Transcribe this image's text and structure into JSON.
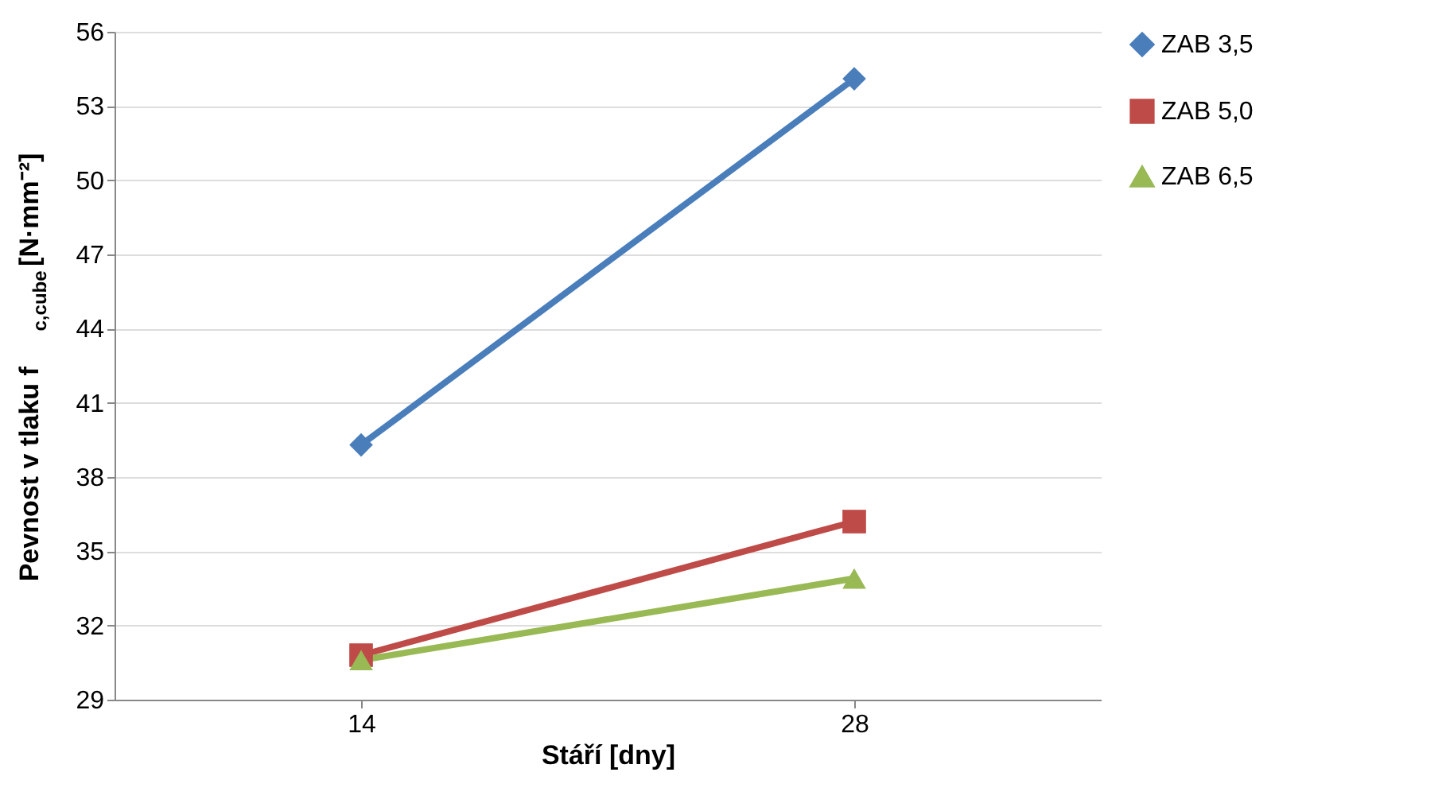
{
  "chart_data": {
    "type": "line",
    "xlabel": "Stáří [dny]",
    "ylabel": "Pevnost v tlaku f$_{c,cube}$ [N·mm⁻²]",
    "categories": [
      "14",
      "28"
    ],
    "series": [
      {
        "name": "ZAB 3,5",
        "color": "#4a7ebb",
        "marker": "diamond",
        "values": [
          39.3,
          54.1
        ]
      },
      {
        "name": "ZAB 5,0",
        "color": "#be4b48",
        "marker": "square",
        "values": [
          30.8,
          36.2
        ]
      },
      {
        "name": "ZAB 6,5",
        "color": "#98b954",
        "marker": "triangle",
        "values": [
          30.6,
          33.9
        ]
      }
    ],
    "ylim": [
      29,
      56
    ],
    "yticks": [
      29,
      32,
      35,
      38,
      41,
      44,
      47,
      50,
      53,
      56
    ],
    "grid": "y",
    "legend": "right",
    "line_style": "solid"
  }
}
